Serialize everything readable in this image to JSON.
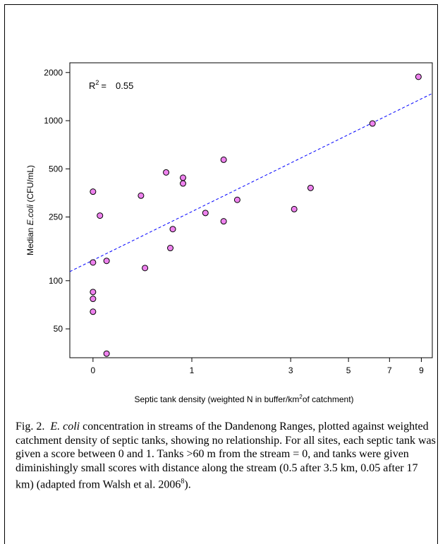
{
  "chart_data": {
    "type": "scatter",
    "annotation": {
      "label": "R",
      "superscript": "2",
      "equals": "=",
      "value": "0.55"
    },
    "xlabel": {
      "text": "Septic tank density (weighted N in buffer/km",
      "sup": "2",
      "tail": "of catchment)"
    },
    "ylabel": {
      "prefix": "Median ",
      "italic": "E.coli",
      "suffix": " (CFU/mL)"
    },
    "y_scale": "log",
    "x_scale": "log(1 + x)",
    "xlim": [
      -0.15,
      9.8
    ],
    "ylim": [
      33,
      2300
    ],
    "x_ticks": [
      {
        "value": 0,
        "label": "0"
      },
      {
        "value": 1,
        "label": "1"
      },
      {
        "value": 3,
        "label": "3"
      },
      {
        "value": 5,
        "label": "5"
      },
      {
        "value": 7,
        "label": "7"
      },
      {
        "value": 9,
        "label": "9"
      }
    ],
    "y_ticks": [
      {
        "value": 50,
        "label": "50"
      },
      {
        "value": 100,
        "label": "100"
      },
      {
        "value": 250,
        "label": "250"
      },
      {
        "value": 500,
        "label": "500"
      },
      {
        "value": 1000,
        "label": "1000"
      },
      {
        "value": 2000,
        "label": "2000"
      }
    ],
    "points": [
      {
        "x": 0.0,
        "y": 130
      },
      {
        "x": 0.0,
        "y": 360
      },
      {
        "x": 0.0,
        "y": 85
      },
      {
        "x": 0.0,
        "y": 77
      },
      {
        "x": 0.0,
        "y": 64
      },
      {
        "x": 0.05,
        "y": 255
      },
      {
        "x": 0.1,
        "y": 133
      },
      {
        "x": 0.1,
        "y": 35
      },
      {
        "x": 0.4,
        "y": 340
      },
      {
        "x": 0.44,
        "y": 120
      },
      {
        "x": 0.67,
        "y": 475
      },
      {
        "x": 0.72,
        "y": 160
      },
      {
        "x": 0.75,
        "y": 210
      },
      {
        "x": 0.88,
        "y": 440
      },
      {
        "x": 0.88,
        "y": 405
      },
      {
        "x": 1.2,
        "y": 265
      },
      {
        "x": 1.5,
        "y": 570
      },
      {
        "x": 1.5,
        "y": 235
      },
      {
        "x": 1.75,
        "y": 320
      },
      {
        "x": 3.1,
        "y": 280
      },
      {
        "x": 3.6,
        "y": 380
      },
      {
        "x": 6.1,
        "y": 960
      },
      {
        "x": 8.8,
        "y": 1880
      }
    ],
    "trendline": {
      "style": "dashed",
      "color": "#0000ff",
      "x": [
        -0.15,
        9.8
      ],
      "y": [
        114,
        1480
      ]
    },
    "marker": {
      "fill": "#ee82ee",
      "stroke": "#000000"
    }
  },
  "caption": {
    "fig_label": "Fig. 2.",
    "italic_term": "E. coli",
    "text1": " concentration in streams of the Dandenong Ranges, plotted against weighted catchment density of septic tanks, showing no relationship.  For all sites, each septic tank was given a score between 0 and 1.  Tanks >60 m from the stream = 0, and tanks were given diminishingly small scores with distance along the stream (0.5 after 3.5 km, 0.05 after 17 km) (adapted from Walsh et al. 2006",
    "ref_sup": "8",
    "text_end": ")."
  }
}
